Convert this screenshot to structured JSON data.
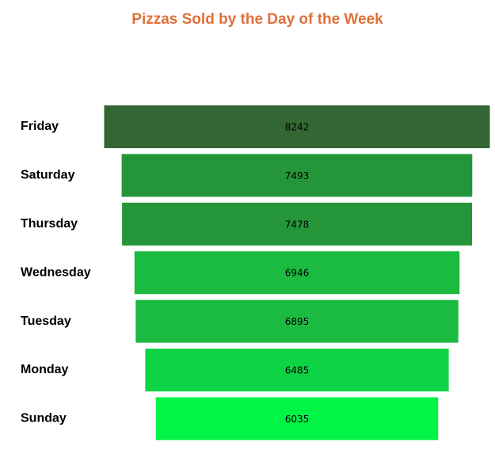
{
  "chart_data": {
    "type": "bar",
    "orientation": "funnel",
    "title": "Pizzas Sold by the Day of the Week",
    "categories": [
      "Friday",
      "Saturday",
      "Thursday",
      "Wednesday",
      "Tuesday",
      "Monday",
      "Sunday"
    ],
    "values": [
      8242,
      7493,
      7478,
      6946,
      6895,
      6485,
      6035
    ],
    "data_labels": [
      "8242",
      "7493",
      "7478",
      "6946",
      "6895",
      "6485",
      "6035"
    ],
    "colors": [
      "#336633",
      "#259539",
      "#259539",
      "#1bba41",
      "#1bba41",
      "#0ed344",
      "#02f446"
    ],
    "title_color": "#e0703a",
    "grid": false,
    "legend": "none"
  }
}
